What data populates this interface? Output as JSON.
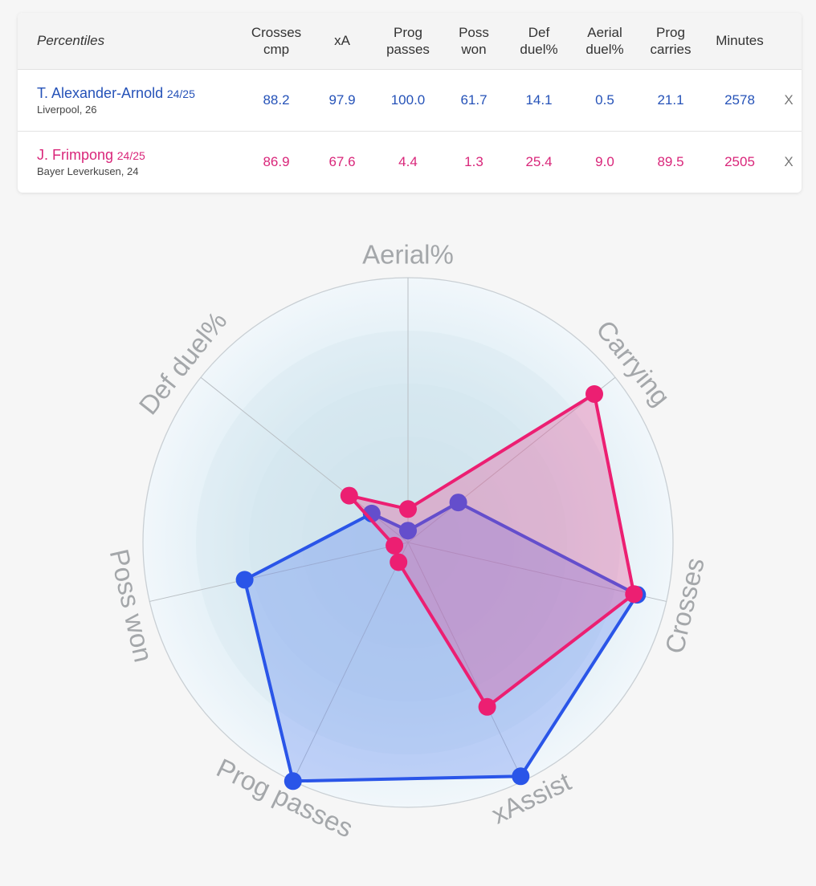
{
  "table": {
    "header_label": "Percentiles",
    "columns": [
      {
        "l1": "Crosses",
        "l2": "cmp"
      },
      {
        "l1": "xA",
        "l2": ""
      },
      {
        "l1": "Prog",
        "l2": "passes"
      },
      {
        "l1": "Poss",
        "l2": "won"
      },
      {
        "l1": "Def",
        "l2": "duel%"
      },
      {
        "l1": "Aerial",
        "l2": "duel%"
      },
      {
        "l1": "Prog",
        "l2": "carries"
      },
      {
        "l1": "Minutes",
        "l2": ""
      }
    ],
    "rows": [
      {
        "name": "T. Alexander-Arnold",
        "season": "24/25",
        "club": "Liverpool, 26",
        "values": [
          "88.2",
          "97.9",
          "100.0",
          "61.7",
          "14.1",
          "0.5",
          "21.1",
          "2578"
        ],
        "remove": "X"
      },
      {
        "name": "J. Frimpong",
        "season": "24/25",
        "club": "Bayer Leverkusen, 24",
        "values": [
          "86.9",
          "67.6",
          "4.4",
          "1.3",
          "25.4",
          "9.0",
          "89.5",
          "2505"
        ],
        "remove": "X"
      }
    ]
  },
  "colors": {
    "player1": "#2552b8",
    "player2": "#d9267a",
    "radar_blue": "#2a55e8",
    "radar_pink": "#ec1f72"
  },
  "chart_data": {
    "type": "radar",
    "axes": [
      "Aerial%",
      "Carrying",
      "Crosses",
      "xAssist",
      "Prog passes",
      "Poss won",
      "Def duel%"
    ],
    "range": [
      0,
      100
    ],
    "series": [
      {
        "name": "T. Alexander-Arnold",
        "values": [
          0.5,
          21.1,
          88.2,
          97.9,
          100.0,
          61.7,
          14.1
        ]
      },
      {
        "name": "J. Frimpong",
        "values": [
          9.0,
          89.5,
          86.9,
          67.6,
          4.4,
          1.3,
          25.4
        ]
      }
    ]
  }
}
